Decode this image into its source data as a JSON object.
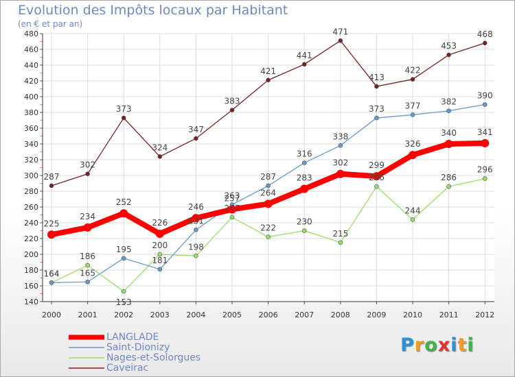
{
  "title": "Evolution des Impôts locaux par Habitant",
  "subtitle": "(en € et par an)",
  "brand": {
    "letters": [
      "P",
      "r",
      "o",
      "x",
      "i",
      "t",
      "i"
    ],
    "colors": [
      "#2f8fd8",
      "#f59a23",
      "#3ab54a",
      "#e0342c",
      "#2f8fd8",
      "#f59a23",
      "#3ab54a"
    ]
  },
  "chart_data": {
    "type": "line",
    "title": "Evolution des Impôts locaux par Habitant",
    "subtitle": "(en € et par an)",
    "xlabel": "",
    "ylabel": "",
    "categories": [
      "2000",
      "2001",
      "2002",
      "2003",
      "2004",
      "2005",
      "2006",
      "2007",
      "2008",
      "2009",
      "2010",
      "2011",
      "2012"
    ],
    "ylim": [
      140,
      480
    ],
    "yticks": [
      "140",
      "160",
      "180",
      "200",
      "220",
      "240",
      "260",
      "280",
      "300",
      "320",
      "340",
      "360",
      "380",
      "400",
      "420",
      "440",
      "460",
      "480"
    ],
    "grid": true,
    "legend": "bottom-left",
    "series": [
      {
        "name": "LANGLADE",
        "color": "#ff0000",
        "values": [
          225,
          234,
          252,
          226,
          246,
          257,
          264,
          283,
          302,
          299,
          326,
          340,
          341
        ]
      },
      {
        "name": "Saint-Dionizy",
        "color": "#6699cc",
        "values": [
          164,
          165,
          195,
          181,
          231,
          263,
          287,
          316,
          338,
          373,
          377,
          382,
          390
        ]
      },
      {
        "name": "Nages-et-Solorgues",
        "color": "#99dd66",
        "values": [
          164,
          186,
          153,
          200,
          198,
          247,
          222,
          230,
          215,
          286,
          244,
          286,
          296
        ]
      },
      {
        "name": "Caveirac",
        "color": "#772222",
        "values": [
          287,
          302,
          373,
          324,
          347,
          383,
          421,
          441,
          471,
          413,
          422,
          453,
          468
        ]
      }
    ]
  }
}
